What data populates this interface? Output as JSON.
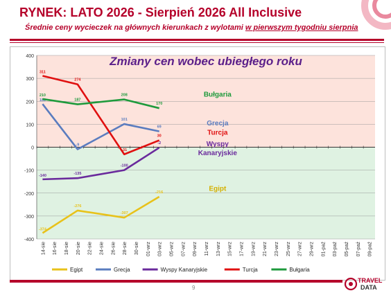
{
  "header": {
    "title": "RYNEK: LATO 2026 - Sierpień 2026 All Inclusive",
    "subtitle_main": "Średnie ceny wycieczek na głównych kierunkach z wylotami ",
    "subtitle_highlight": "w pierwszym tygodniu sierpnia"
  },
  "footer": {
    "page_number": "9",
    "logo_text_top": "TRAVEL",
    "logo_text_bottom": "DATA"
  },
  "colors": {
    "accent": "#b5002a",
    "positive_zone": "#fde3dc",
    "negative_zone": "#dff2e2"
  },
  "chart_data": {
    "type": "line",
    "title": "Zmiany cen wobec ubiegłego roku",
    "xlabel": "",
    "ylabel": "",
    "ylim": [
      -400,
      400
    ],
    "yticks": [
      400,
      300,
      200,
      100,
      0,
      -100,
      -200,
      -300,
      -400
    ],
    "grid": true,
    "legend_position": "bottom",
    "categories": [
      "14-sie",
      "16-sie",
      "18-sie",
      "20-sie",
      "22-sie",
      "24-sie",
      "26-sie",
      "28-sie",
      "30-sie",
      "01-wrz",
      "03-wrz",
      "05-wrz",
      "07-wrz",
      "09-wrz",
      "11-wrz",
      "13-wrz",
      "15-wrz",
      "17-wrz",
      "19-wrz",
      "21-wrz",
      "23-wrz",
      "25-wrz",
      "27-wrz",
      "29-wrz",
      "01-paź",
      "03-paź",
      "05-paź",
      "07-paź",
      "09-paź"
    ],
    "series": [
      {
        "name": "Egipt",
        "color": "#e8c21a",
        "points": [
          [
            0,
            -374
          ],
          [
            3,
            -276
          ],
          [
            7,
            -307
          ],
          [
            10,
            -216
          ]
        ],
        "labels": [
          "-374",
          "-276",
          "-307",
          "-216"
        ],
        "region_label": "Egipt",
        "region_label_color": "#d4b000",
        "region_label_value": -190
      },
      {
        "name": "Grecja",
        "color": "#5a7cbf",
        "points": [
          [
            0,
            188
          ],
          [
            3,
            -9
          ],
          [
            7,
            101
          ],
          [
            10,
            69
          ]
        ],
        "labels": [
          "188",
          "-9",
          "101",
          "69"
        ],
        "region_label": "Grecja",
        "region_label_color": "#5a7cbf",
        "region_label_value": 95
      },
      {
        "name": "Wyspy Kanaryjskie",
        "color": "#6a2a9c",
        "points": [
          [
            0,
            -140
          ],
          [
            3,
            -135
          ],
          [
            7,
            -100
          ],
          [
            10,
            -2
          ]
        ],
        "labels": [
          "-140",
          "-135",
          "-100",
          "-2"
        ],
        "region_label": "Wyspy\nKanaryjskie",
        "region_label_color": "#6a2a9c",
        "region_label_value": 5
      },
      {
        "name": "Turcja",
        "color": "#e01010",
        "points": [
          [
            0,
            311
          ],
          [
            3,
            274
          ],
          [
            7,
            -31
          ],
          [
            10,
            30
          ]
        ],
        "labels": [
          "311",
          "274",
          "-31",
          "30"
        ],
        "region_label": "Turcja",
        "region_label_color": "#e01010",
        "region_label_value": 55
      },
      {
        "name": "Bułgaria",
        "color": "#1e9a3c",
        "points": [
          [
            0,
            210
          ],
          [
            3,
            187
          ],
          [
            7,
            208
          ],
          [
            10,
            170
          ]
        ],
        "labels": [
          "210",
          "187",
          "208",
          "170"
        ],
        "region_label": "Bułgaria",
        "region_label_color": "#1e9a3c",
        "region_label_value": 220
      }
    ]
  }
}
